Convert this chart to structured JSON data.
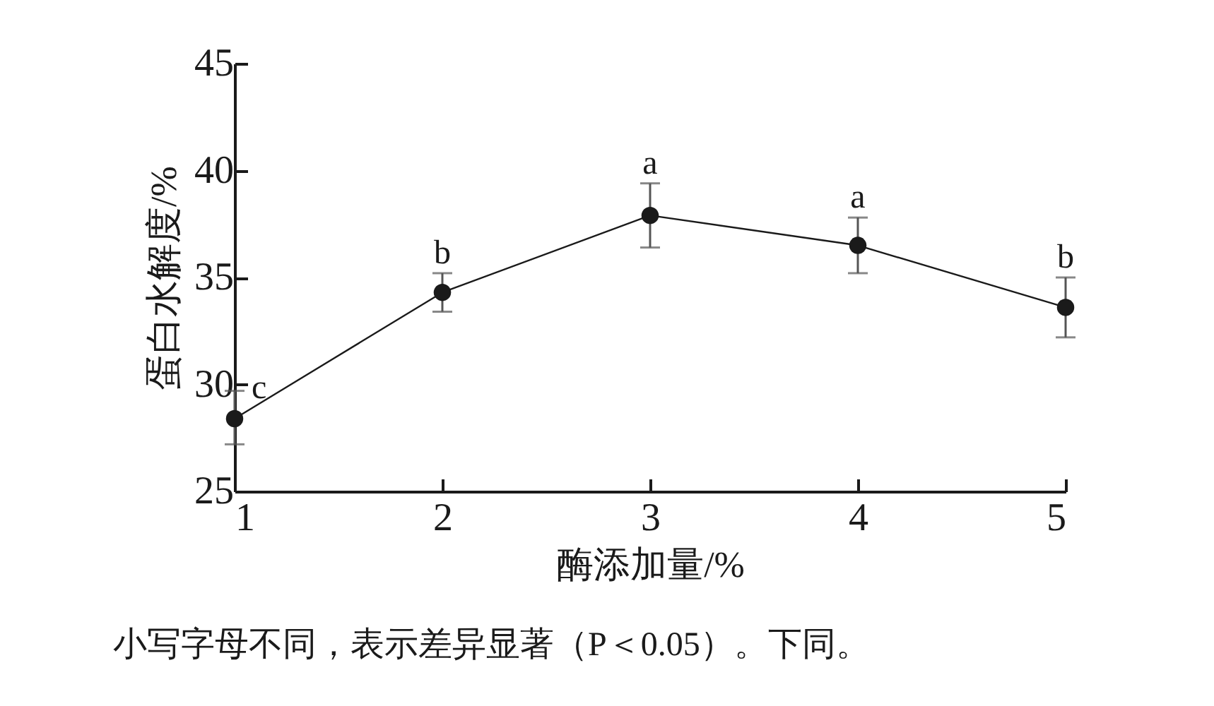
{
  "chart_data": {
    "type": "line",
    "xlabel": "酶添加量/%",
    "ylabel": "蛋白水解度/%",
    "x": [
      1,
      2,
      3,
      4,
      5
    ],
    "series": [
      {
        "color": "#1a1a1a",
        "values": [
          28.4,
          34.3,
          37.9,
          36.5,
          33.6
        ],
        "errors": [
          [
            27.2,
            29.7
          ],
          [
            33.4,
            35.2
          ],
          [
            36.4,
            39.4
          ],
          [
            35.2,
            37.8
          ],
          [
            32.2,
            35.0
          ]
        ]
      }
    ],
    "xlim": [
      1,
      5
    ],
    "xticks": [
      1,
      2,
      3,
      4,
      5
    ],
    "ylim": [
      25,
      45
    ],
    "yticks": [
      25,
      30,
      35,
      40,
      45
    ],
    "marker": "circle",
    "line_style": "solid",
    "grid": false,
    "annotations": [
      {
        "text": "c",
        "x": 1,
        "y": 28.4
      },
      {
        "text": "b",
        "x": 2,
        "y": 34.3
      },
      {
        "text": "a",
        "x": 3,
        "y": 37.9
      },
      {
        "text": "a",
        "x": 4,
        "y": 36.5
      },
      {
        "text": "b",
        "x": 5,
        "y": 33.6
      },
      "小写字母不同，表示差异显著（P＜0.05）。下同。"
    ]
  }
}
